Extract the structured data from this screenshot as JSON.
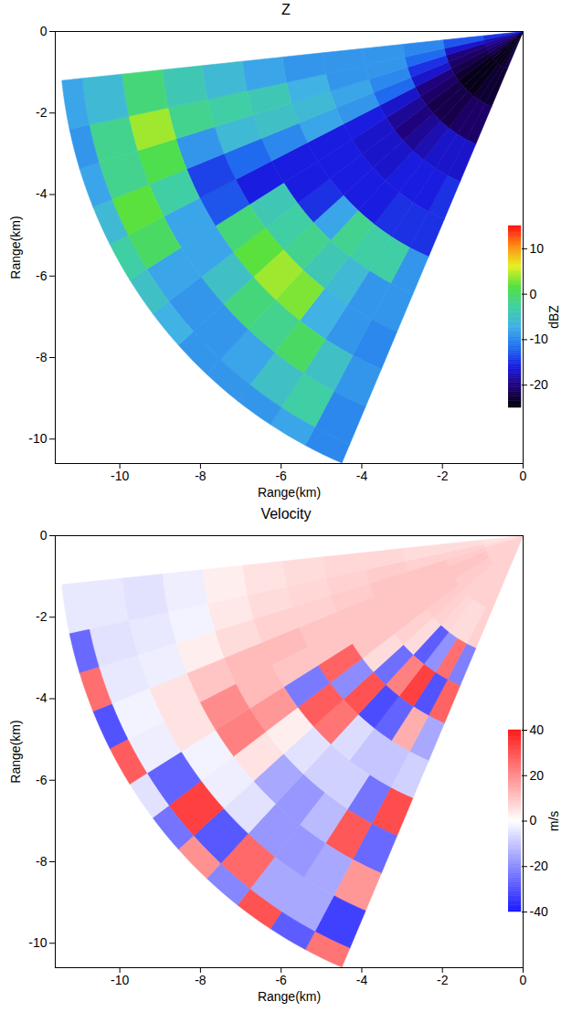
{
  "chart_data": [
    {
      "type": "heatmap",
      "title": "Z",
      "x_label": "Range(km)",
      "y_label": "Range(km)",
      "xlim": [
        -11.6,
        0
      ],
      "xticks": [
        -10,
        -8,
        -6,
        -4,
        -2,
        0
      ],
      "ylim": [
        -10.6,
        0
      ],
      "yticks": [
        -10,
        -8,
        -6,
        -4,
        -2,
        0
      ],
      "range_edges": [
        0,
        1,
        2,
        3,
        4,
        5,
        6,
        7,
        8,
        9,
        10,
        11,
        11.5
      ],
      "azimuth_edges": [
        203,
        208,
        213,
        218,
        223,
        228,
        233,
        238,
        243,
        248,
        253,
        258,
        264
      ],
      "values": [
        [
          -22,
          -23,
          -21,
          -17,
          -15,
          -15,
          -9,
          -9,
          -10,
          -9,
          -10,
          -10
        ],
        [
          -23,
          -23,
          -21,
          -17,
          -16,
          -15,
          -3,
          -9,
          -9,
          -5,
          -3,
          -8
        ],
        [
          -24,
          -23,
          -21,
          -17,
          -16,
          -15,
          -3,
          -6,
          -7,
          0,
          -5,
          -9
        ],
        [
          -24,
          -24,
          -22,
          -18,
          -16,
          -16,
          -2,
          -4,
          3,
          -2,
          -8,
          -9
        ],
        [
          -24,
          -24,
          -22,
          -19,
          -17,
          -16,
          -8,
          -2,
          4,
          -1,
          -9,
          -9
        ],
        [
          -23,
          -24,
          -22,
          -20,
          -17,
          -16,
          -15,
          -3,
          2,
          -5,
          -9,
          -7
        ],
        [
          -22,
          -23,
          -21,
          -19,
          -17,
          -16,
          -16,
          -4,
          -1,
          -8,
          -8,
          -5
        ],
        [
          -21,
          -22,
          -20,
          -17,
          -16,
          -16,
          -16,
          -16,
          -13,
          -8,
          0,
          -3
        ],
        [
          -20,
          -21,
          -17,
          -12,
          -9,
          -8,
          -10,
          -12,
          -14,
          -3,
          2,
          -6
        ],
        [
          -19,
          -20,
          -15,
          -10,
          -8,
          -6,
          -5,
          -6,
          -9,
          1,
          -2,
          -8
        ],
        [
          -18,
          -17,
          -12,
          -9,
          -9,
          -7,
          -4,
          -3,
          -2,
          4,
          -2,
          -9
        ],
        [
          -15,
          -13,
          -10,
          -9,
          -9,
          -9,
          -8,
          -6,
          -4,
          -1,
          -6,
          -8
        ]
      ],
      "colorbar_label": "dBZ",
      "colorbar_lim": [
        -25,
        15
      ],
      "colorbar_ticks": [
        -20,
        -10,
        0,
        10
      ]
    },
    {
      "type": "heatmap",
      "title": "Velocity",
      "x_label": "Range(km)",
      "y_label": "Range(km)",
      "xlim": [
        -11.6,
        0
      ],
      "xticks": [
        -10,
        -8,
        -6,
        -4,
        -2,
        0
      ],
      "ylim": [
        -10.6,
        0
      ],
      "yticks": [
        -10,
        -8,
        -6,
        -4,
        -2,
        0
      ],
      "range_edges": [
        0,
        1,
        2,
        3,
        4,
        5,
        6,
        7,
        8,
        9,
        10,
        11,
        11.5
      ],
      "azimuth_edges": [
        203,
        208,
        213,
        218,
        223,
        228,
        233,
        238,
        243,
        248,
        253,
        258,
        264
      ],
      "values": [
        [
          8,
          8,
          8,
          -22,
          27,
          -15,
          -8,
          31,
          -26,
          18,
          -33,
          24
        ],
        [
          8,
          8,
          6,
          25,
          -30,
          14,
          -10,
          -24,
          29,
          -15,
          -15,
          -28
        ],
        [
          8,
          8,
          6,
          -19,
          33,
          -27,
          -10,
          -8,
          -12,
          -18,
          -15,
          30
        ],
        [
          8,
          8,
          7,
          -28,
          22,
          -31,
          -6,
          -8,
          -18,
          -18,
          26,
          -21
        ],
        [
          8,
          8,
          8,
          6,
          -25,
          30,
          24,
          -5,
          -15,
          -5,
          -29,
          19
        ],
        [
          8,
          9,
          9,
          8,
          6,
          -20,
          28,
          3,
          5,
          -3,
          33,
          -24
        ],
        [
          8,
          9,
          10,
          10,
          10,
          27,
          -23,
          18,
          22,
          -2,
          -27,
          -5
        ],
        [
          8,
          10,
          10,
          10,
          10,
          10,
          10,
          12,
          20,
          5,
          -3,
          28
        ],
        [
          8,
          10,
          10,
          10,
          10,
          10,
          12,
          12,
          10,
          5,
          -2,
          -30
        ],
        [
          8,
          9,
          10,
          10,
          9,
          8,
          8,
          6,
          3,
          -3,
          -4,
          25
        ],
        [
          6,
          8,
          8,
          9,
          8,
          7,
          6,
          4,
          -2,
          -4,
          -5,
          -26
        ],
        [
          5,
          6,
          6,
          7,
          7,
          6,
          5,
          3,
          -3,
          -5,
          -4,
          -4
        ]
      ],
      "colorbar_label": "m/s",
      "colorbar_lim": [
        -40,
        40
      ],
      "colorbar_ticks": [
        -40,
        -20,
        0,
        20,
        40
      ]
    }
  ]
}
